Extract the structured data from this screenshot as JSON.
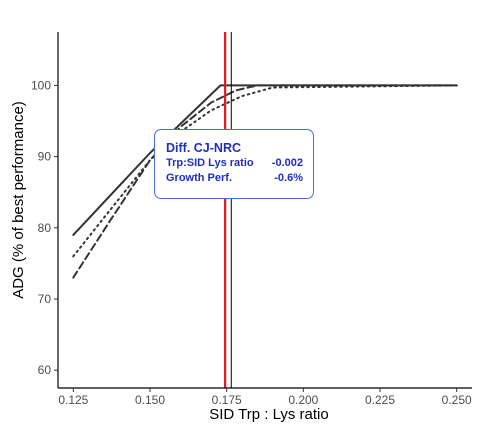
{
  "chart_data": {
    "type": "line",
    "title": "",
    "xlabel": "SID Trp : Lys ratio",
    "ylabel": "ADG (% of best performance)",
    "xlim": [
      0.12,
      0.255
    ],
    "ylim": [
      57.5,
      107.5
    ],
    "x_ticks": [
      "0.125",
      "0.150",
      "0.175",
      "0.200",
      "0.225",
      "0.250"
    ],
    "y_ticks": [
      "60",
      "70",
      "80",
      "90",
      "100"
    ],
    "grid": false,
    "legend": "none",
    "series": [
      {
        "style": "solid",
        "color": "#333333",
        "points": [
          [
            0.125,
            79
          ],
          [
            0.15,
            90.5
          ],
          [
            0.173,
            100
          ],
          [
            0.25,
            100
          ]
        ]
      },
      {
        "style": "dotted",
        "color": "#333333",
        "points": [
          [
            0.125,
            76
          ],
          [
            0.137,
            82.5
          ],
          [
            0.15,
            89.5
          ],
          [
            0.16,
            93.5
          ],
          [
            0.17,
            96.5
          ],
          [
            0.18,
            98.5
          ],
          [
            0.19,
            99.7
          ],
          [
            0.25,
            100
          ]
        ]
      },
      {
        "style": "dashed",
        "color": "#333333",
        "points": [
          [
            0.125,
            73
          ],
          [
            0.137,
            81
          ],
          [
            0.15,
            89.5
          ],
          [
            0.16,
            94.2
          ],
          [
            0.17,
            97.6
          ],
          [
            0.178,
            99.3
          ],
          [
            0.185,
            100
          ],
          [
            0.25,
            100
          ]
        ]
      }
    ],
    "vlines": [
      {
        "x": 0.1745,
        "color": "#e8141b",
        "width": 2.2
      },
      {
        "x": 0.1765,
        "color": "#000000",
        "width": 1
      }
    ],
    "annotation": {
      "title": "Diff. CJ-NRC",
      "rows": [
        {
          "label": "Trp:SID Lys ratio",
          "value": "-0.002"
        },
        {
          "label": "Growth Perf.",
          "value": "-0.6%"
        }
      ],
      "text_color": "#1f2fbf",
      "border_color": "#4a6ee0"
    }
  }
}
